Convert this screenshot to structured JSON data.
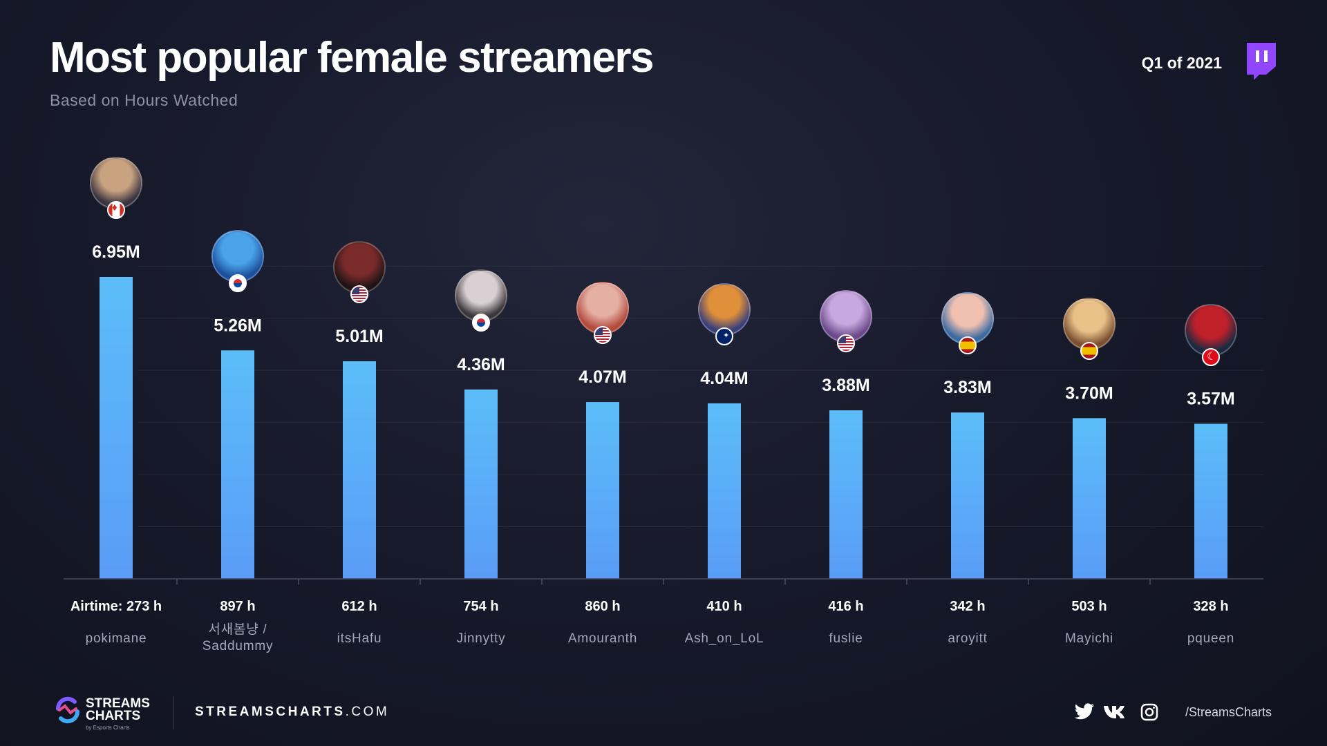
{
  "header": {
    "title": "Most popular female streamers",
    "subtitle": "Based on Hours Watched",
    "period": "Q1 of 2021"
  },
  "footer": {
    "brand_line1": "STREAMS",
    "brand_line2": "CHARTS",
    "brand_sub": "by Esports Charts",
    "site_bold": "STREAMSCHARTS",
    "site_rest": ".COM",
    "handle": "/StreamsCharts",
    "social_icons": [
      "twitter-icon",
      "vk-icon",
      "instagram-icon"
    ]
  },
  "colors": {
    "bar_top": "#5cbdf8",
    "bar_bottom": "#5a9cf7",
    "twitch": "#9146ff"
  },
  "chart_data": {
    "type": "bar",
    "title": "Most popular female streamers",
    "subtitle": "Based on Hours Watched",
    "categories": [
      "pokimane",
      "서새봄냥 / Saddummy",
      "itsHafu",
      "Jinnytty",
      "Amouranth",
      "Ash_on_LoL",
      "fuslie",
      "aroyitt",
      "Mayichi",
      "pqueen"
    ],
    "values": [
      6.95,
      5.26,
      5.01,
      4.36,
      4.07,
      4.04,
      3.88,
      3.83,
      3.7,
      3.57
    ],
    "value_labels": [
      "6.95M",
      "5.26M",
      "5.01M",
      "4.36M",
      "4.07M",
      "4.04M",
      "3.88M",
      "3.83M",
      "3.70M",
      "3.57M"
    ],
    "airtime_labels": [
      "Airtime: 273 h",
      "897 h",
      "612 h",
      "754 h",
      "860 h",
      "410 h",
      "416 h",
      "342 h",
      "503 h",
      "328 h"
    ],
    "name_lines": [
      [
        "pokimane"
      ],
      [
        "서새봄냥 /",
        "Saddummy"
      ],
      [
        "itsHafu"
      ],
      [
        "Jinnytty"
      ],
      [
        "Amouranth"
      ],
      [
        "Ash_on_LoL"
      ],
      [
        "fuslie"
      ],
      [
        "aroyitt"
      ],
      [
        "Mayichi"
      ],
      [
        "pqueen"
      ]
    ],
    "flags": [
      "ca",
      "kr",
      "us",
      "kr",
      "us",
      "au",
      "us",
      "es",
      "es",
      "tr"
    ],
    "avatar_colors": [
      [
        "#c9a27f",
        "#3a3442"
      ],
      [
        "#4aa3e8",
        "#1c4f9c"
      ],
      [
        "#7a2a2a",
        "#1e1416"
      ],
      [
        "#d8d0d2",
        "#3b3639"
      ],
      [
        "#e4b0a4",
        "#b34a3c"
      ],
      [
        "#e0903a",
        "#3a3f7a"
      ],
      [
        "#c9a8e0",
        "#6a4a8a"
      ],
      [
        "#f0c0b0",
        "#3a6aa0"
      ],
      [
        "#e8c088",
        "#7a5030"
      ],
      [
        "#c0202a",
        "#1a2a40"
      ]
    ],
    "ylim": [
      0,
      8
    ],
    "grid": true
  }
}
